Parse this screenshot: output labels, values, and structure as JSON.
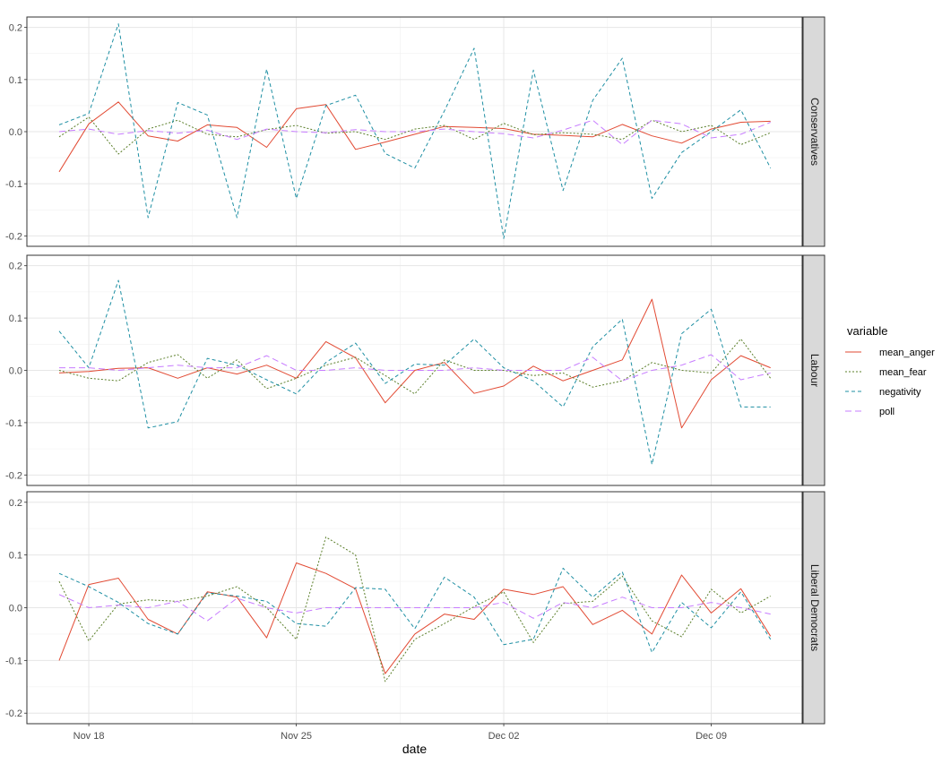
{
  "chart_data": {
    "type": "line",
    "xlabel": "date",
    "ylabel": "",
    "ylim": [
      -0.22,
      0.22
    ],
    "y_ticks": [
      -0.2,
      -0.1,
      0.0,
      0.1,
      0.2
    ],
    "y_tick_labels": [
      "-0.2",
      "-0.1",
      "0.0",
      "0.1",
      "0.2"
    ],
    "x_ticks": [
      "Nov 18",
      "Nov 25",
      "Dec 02",
      "Dec 09"
    ],
    "x": [
      "Nov 17",
      "Nov 18",
      "Nov 19",
      "Nov 20",
      "Nov 21",
      "Nov 22",
      "Nov 23",
      "Nov 24",
      "Nov 25",
      "Nov 26",
      "Nov 27",
      "Nov 28",
      "Nov 29",
      "Nov 30",
      "Dec 01",
      "Dec 02",
      "Dec 03",
      "Dec 04",
      "Dec 05",
      "Dec 06",
      "Dec 07",
      "Dec 08",
      "Dec 09",
      "Dec 10",
      "Dec 11"
    ],
    "grid": true,
    "legend": {
      "title": "variable",
      "position": "right",
      "entries": [
        {
          "name": "mean_anger",
          "color": "#E24A33",
          "dash": "solid"
        },
        {
          "name": "mean_fear",
          "color": "#5B7F2A",
          "dash": "dotted"
        },
        {
          "name": "negativity",
          "color": "#1E8FA3",
          "dash": "dashed"
        },
        {
          "name": "poll",
          "color": "#C77CFF",
          "dash": "longdash"
        }
      ]
    },
    "facets": [
      {
        "label": "Conservatives",
        "series": [
          {
            "name": "mean_anger",
            "values": [
              -0.077,
              0.015,
              0.057,
              -0.008,
              -0.018,
              0.013,
              0.008,
              -0.03,
              0.044,
              0.052,
              -0.034,
              -0.02,
              -0.005,
              0.01,
              0.008,
              0.006,
              -0.005,
              -0.007,
              -0.01,
              0.014,
              -0.008,
              -0.022,
              0.005,
              0.018,
              0.02
            ]
          },
          {
            "name": "mean_fear",
            "values": [
              -0.01,
              0.028,
              -0.043,
              0.005,
              0.022,
              -0.005,
              -0.01,
              0.004,
              0.012,
              -0.003,
              0.0,
              -0.015,
              0.005,
              0.012,
              -0.015,
              0.016,
              -0.006,
              -0.002,
              -0.005,
              -0.015,
              0.022,
              0.0,
              0.012,
              -0.025,
              -0.002
            ]
          },
          {
            "name": "negativity",
            "values": [
              0.013,
              0.035,
              0.207,
              -0.165,
              0.056,
              0.032,
              -0.165,
              0.12,
              -0.128,
              0.05,
              0.07,
              -0.042,
              -0.07,
              0.04,
              0.16,
              -0.205,
              0.118,
              -0.113,
              0.06,
              0.141,
              -0.128,
              -0.04,
              0.0,
              0.042,
              -0.07
            ]
          },
          {
            "name": "poll",
            "values": [
              0.0,
              0.005,
              -0.005,
              0.002,
              -0.003,
              0.003,
              -0.015,
              0.005,
              0.0,
              -0.002,
              0.004,
              0.0,
              0.0,
              0.005,
              0.0,
              -0.004,
              -0.012,
              0.003,
              0.022,
              -0.025,
              0.022,
              0.015,
              -0.012,
              -0.005,
              0.018
            ]
          }
        ]
      },
      {
        "label": "Labour",
        "series": [
          {
            "name": "mean_anger",
            "values": [
              -0.005,
              -0.002,
              0.004,
              0.005,
              -0.015,
              0.005,
              -0.007,
              0.01,
              -0.015,
              0.055,
              0.024,
              -0.062,
              0.0,
              0.015,
              -0.044,
              -0.03,
              0.008,
              -0.02,
              0.0,
              0.02,
              0.136,
              -0.11,
              -0.018,
              0.028,
              0.005
            ]
          },
          {
            "name": "mean_fear",
            "values": [
              0.0,
              -0.015,
              -0.02,
              0.015,
              0.03,
              -0.015,
              0.02,
              -0.035,
              -0.015,
              0.01,
              0.025,
              -0.01,
              -0.045,
              0.02,
              0.0,
              0.0,
              -0.01,
              -0.005,
              -0.032,
              -0.02,
              0.015,
              0.0,
              -0.005,
              0.06,
              -0.015
            ]
          },
          {
            "name": "negativity",
            "values": [
              0.075,
              0.005,
              0.172,
              -0.11,
              -0.098,
              0.023,
              0.01,
              -0.018,
              -0.045,
              0.015,
              0.052,
              -0.025,
              0.012,
              0.01,
              0.06,
              0.005,
              -0.02,
              -0.07,
              0.045,
              0.098,
              -0.18,
              0.07,
              0.117,
              -0.07,
              -0.07
            ]
          },
          {
            "name": "poll",
            "values": [
              0.005,
              0.005,
              0.0,
              0.005,
              0.01,
              0.005,
              0.005,
              0.028,
              0.0,
              0.0,
              0.005,
              0.0,
              0.0,
              0.0,
              0.005,
              0.0,
              0.0,
              0.0,
              0.025,
              -0.02,
              0.0,
              0.01,
              0.03,
              -0.018,
              -0.005
            ]
          }
        ]
      },
      {
        "label": "Liberal Democrats",
        "series": [
          {
            "name": "mean_anger",
            "values": [
              -0.1,
              0.044,
              0.056,
              -0.022,
              -0.05,
              0.03,
              0.02,
              -0.057,
              0.085,
              0.065,
              0.036,
              -0.125,
              -0.05,
              -0.012,
              -0.022,
              0.035,
              0.025,
              0.04,
              -0.032,
              -0.005,
              -0.05,
              0.062,
              -0.01,
              0.036,
              -0.054
            ]
          },
          {
            "name": "mean_fear",
            "values": [
              0.05,
              -0.063,
              0.007,
              0.015,
              0.012,
              0.022,
              0.04,
              0.0,
              -0.06,
              0.134,
              0.1,
              -0.14,
              -0.06,
              -0.03,
              0.002,
              0.03,
              -0.066,
              0.008,
              0.012,
              0.06,
              -0.025,
              -0.055,
              0.035,
              -0.01,
              0.022
            ]
          },
          {
            "name": "negativity",
            "values": [
              0.065,
              0.04,
              0.01,
              -0.03,
              -0.05,
              0.028,
              0.022,
              0.012,
              -0.03,
              -0.035,
              0.038,
              0.035,
              -0.04,
              0.058,
              0.02,
              -0.07,
              -0.06,
              0.075,
              0.02,
              0.068,
              -0.085,
              0.01,
              -0.038,
              0.03,
              -0.06
            ]
          },
          {
            "name": "poll",
            "values": [
              0.025,
              0.0,
              0.005,
              0.0,
              0.012,
              -0.025,
              0.018,
              0.0,
              -0.01,
              0.0,
              0.0,
              0.0,
              0.0,
              0.0,
              0.0,
              0.01,
              -0.02,
              0.01,
              0.0,
              0.02,
              0.0,
              0.0,
              0.01,
              0.0,
              -0.012
            ]
          }
        ]
      }
    ]
  }
}
